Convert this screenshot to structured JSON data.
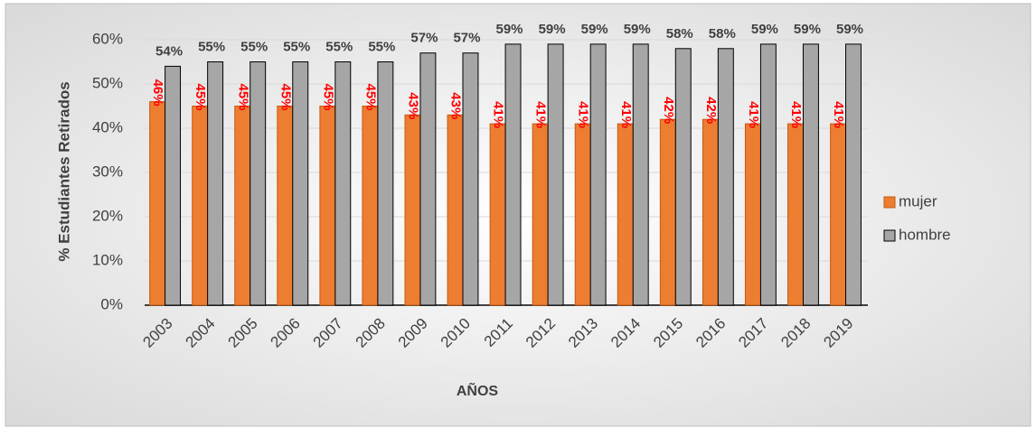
{
  "chart_data": {
    "type": "bar",
    "categories": [
      "2003",
      "2004",
      "2005",
      "2006",
      "2007",
      "2008",
      "2009",
      "2010",
      "2011",
      "2012",
      "2013",
      "2014",
      "2015",
      "2016",
      "2017",
      "2018",
      "2019"
    ],
    "series": [
      {
        "name": "mujer",
        "color": "#ed7d31",
        "values": [
          46,
          45,
          45,
          45,
          45,
          45,
          43,
          43,
          41,
          41,
          41,
          41,
          42,
          42,
          41,
          41,
          41
        ],
        "value_labels": [
          "46%",
          "45%",
          "45%",
          "45%",
          "45%",
          "45%",
          "43%",
          "43%",
          "41%",
          "41%",
          "41%",
          "41%",
          "42%",
          "42%",
          "41%",
          "41%",
          "41%"
        ]
      },
      {
        "name": "hombre",
        "color": "#a6a6a6",
        "values": [
          54,
          55,
          55,
          55,
          55,
          55,
          57,
          57,
          59,
          59,
          59,
          59,
          58,
          58,
          59,
          59,
          59
        ],
        "value_labels": [
          "54%",
          "55%",
          "55%",
          "55%",
          "55%",
          "55%",
          "57%",
          "57%",
          "59%",
          "59%",
          "59%",
          "59%",
          "58%",
          "58%",
          "59%",
          "59%",
          "59%"
        ]
      }
    ],
    "xlabel": "AÑOS",
    "ylabel": "% Estudiantes Retirados",
    "ylim": [
      0,
      60
    ],
    "yticks": [
      {
        "value": 0,
        "label": "0%"
      },
      {
        "value": 10,
        "label": "10%"
      },
      {
        "value": 20,
        "label": "20%"
      },
      {
        "value": 30,
        "label": "30%"
      },
      {
        "value": 40,
        "label": "40%"
      },
      {
        "value": 50,
        "label": "50%"
      },
      {
        "value": 60,
        "label": "60%"
      }
    ],
    "grid": true,
    "legend": "right"
  }
}
